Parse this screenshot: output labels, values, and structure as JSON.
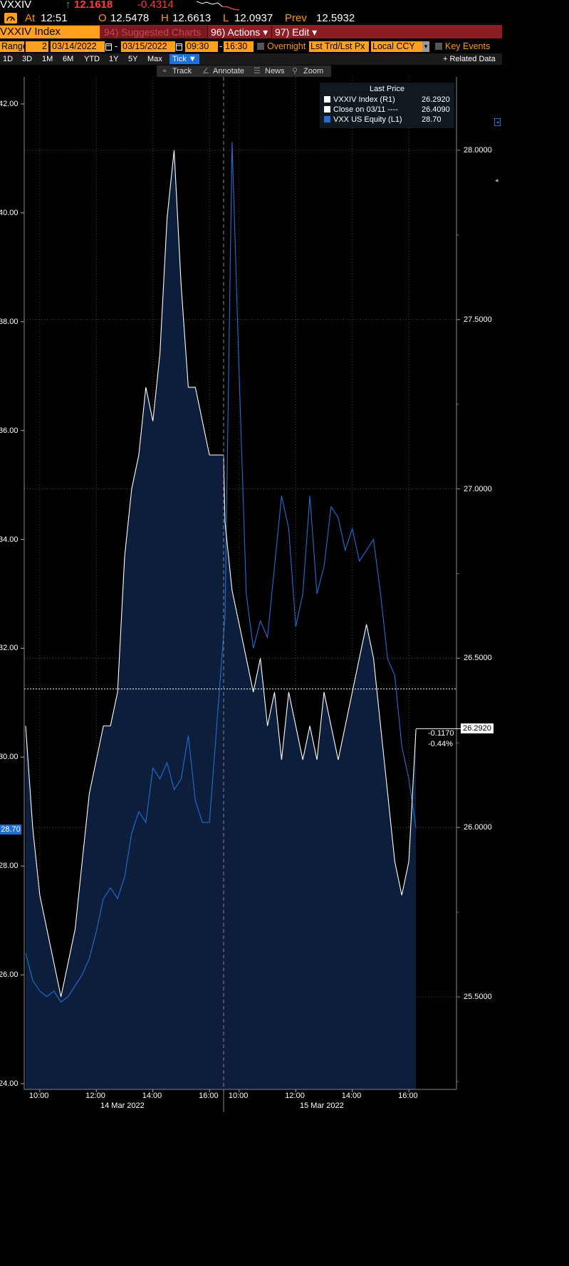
{
  "header": {
    "ticker": "VXXIV",
    "last_arrow": "↑",
    "last": "12.1618",
    "change": "-0.4314",
    "at_label": "At",
    "time": "12:51",
    "open_label": "O",
    "open": "12.5478",
    "high_label": "H",
    "high": "12.6613",
    "low_label": "L",
    "low": "12.0937",
    "prev_label": "Prev",
    "prev": "12.5932"
  },
  "toolbar": {
    "security": "VXXIV Index",
    "suggested": "94) Suggested Charts",
    "actions": "96) Actions ▾",
    "edit": "97) Edit ▾"
  },
  "range_bar": {
    "range_label": "Range",
    "range_num": "2",
    "start_date": "03/14/2022",
    "dash": "-",
    "end_date": "03/15/2022",
    "start_time": "09:30",
    "end_time": "16:30",
    "overnight": "Overnight",
    "lst_trd": "Lst Trd/Lst Px",
    "ccy": "Local CCY",
    "key_events": "Key Events"
  },
  "period_bar": {
    "periods": [
      "1D",
      "3D",
      "1M",
      "6M",
      "YTD",
      "1Y",
      "5Y",
      "Max"
    ],
    "tick": "Tick ▼",
    "related": "+ Related Data"
  },
  "tools": {
    "track": "Track",
    "annotate": "Annotate",
    "news": "News",
    "zoom": "Zoom"
  },
  "legend": {
    "title": "Last Price",
    "rows": [
      {
        "label": "VXXIV Index  (R1)",
        "value": "26.2920",
        "color": "#ffffff"
      },
      {
        "label": "Close on 03/11 ----",
        "value": "26.4090",
        "color": "#ffffff"
      },
      {
        "label": "VXX US Equity  (L1)",
        "value": "28.70",
        "color": "#1f6fd6"
      }
    ]
  },
  "last_value_tags": {
    "left": "28.70",
    "right": "26.2920",
    "change": "-0.1170",
    "change_pct": "-0.44%"
  },
  "colors": {
    "vxx": "#1f6fd6",
    "vxxiv": "#ffffff",
    "area": "#0c1e3c",
    "accent": "#ff9900"
  },
  "chart_data": {
    "type": "line",
    "x_ticks": [
      "10:00",
      "12:00",
      "14:00",
      "16:00",
      "10:00",
      "12:00",
      "14:00",
      "16:00"
    ],
    "date_labels": [
      "14 Mar 2022",
      "15 Mar 2022"
    ],
    "left_axis": {
      "ticks": [
        "24.00",
        "26.00",
        "28.00",
        "30.00",
        "32.00",
        "34.00",
        "36.00",
        "38.00",
        "40.00",
        "42.00"
      ],
      "ylim": [
        24,
        42
      ]
    },
    "right_axis": {
      "ticks": [
        "25.5000",
        "26.0000",
        "26.5000",
        "27.0000",
        "27.5000",
        "28.0000"
      ],
      "ylim": [
        25.5,
        28
      ]
    },
    "reference_line": {
      "label": "Close on 03/11",
      "value": 26.409
    },
    "series": [
      {
        "name": "VXXIV Index",
        "axis": "right",
        "x": [
          "03/14 09:30",
          "03/14 09:45",
          "03/14 10:00",
          "03/14 10:15",
          "03/14 10:30",
          "03/14 10:45",
          "03/14 11:00",
          "03/14 11:15",
          "03/14 11:30",
          "03/14 11:45",
          "03/14 12:00",
          "03/14 12:15",
          "03/14 12:30",
          "03/14 12:45",
          "03/14 13:00",
          "03/14 13:15",
          "03/14 13:30",
          "03/14 13:45",
          "03/14 14:00",
          "03/14 14:15",
          "03/14 14:30",
          "03/14 14:45",
          "03/14 15:00",
          "03/14 15:15",
          "03/14 15:30",
          "03/14 15:45",
          "03/14 16:00",
          "03/14 16:30",
          "03/15 09:30",
          "03/15 09:45",
          "03/15 10:00",
          "03/15 10:15",
          "03/15 10:30",
          "03/15 10:45",
          "03/15 11:00",
          "03/15 11:15",
          "03/15 11:30",
          "03/15 11:45",
          "03/15 12:00",
          "03/15 12:15",
          "03/15 12:30",
          "03/15 12:45",
          "03/15 13:00",
          "03/15 13:15",
          "03/15 13:30",
          "03/15 13:45",
          "03/15 14:00",
          "03/15 14:15",
          "03/15 14:30",
          "03/15 14:45",
          "03/15 15:00",
          "03/15 15:15",
          "03/15 15:30",
          "03/15 15:45",
          "03/15 16:00",
          "03/15 16:15"
        ],
        "values": [
          26.3,
          26.0,
          25.8,
          25.7,
          25.6,
          25.5,
          25.6,
          25.7,
          25.9,
          26.1,
          26.2,
          26.3,
          26.3,
          26.4,
          26.8,
          27.0,
          27.1,
          27.3,
          27.2,
          27.4,
          27.8,
          28.0,
          27.6,
          27.3,
          27.3,
          27.2,
          27.1,
          27.1,
          26.9,
          26.7,
          26.6,
          26.5,
          26.4,
          26.5,
          26.3,
          26.4,
          26.2,
          26.4,
          26.3,
          26.2,
          26.3,
          26.2,
          26.4,
          26.3,
          26.2,
          26.3,
          26.4,
          26.5,
          26.6,
          26.5,
          26.3,
          26.1,
          25.9,
          25.8,
          25.9,
          26.29
        ]
      },
      {
        "name": "VXX US Equity",
        "axis": "left",
        "x": [
          "03/14 09:30",
          "03/14 09:45",
          "03/14 10:00",
          "03/14 10:15",
          "03/14 10:30",
          "03/14 10:45",
          "03/14 11:00",
          "03/14 11:15",
          "03/14 11:30",
          "03/14 11:45",
          "03/14 12:00",
          "03/14 12:15",
          "03/14 12:30",
          "03/14 12:45",
          "03/14 13:00",
          "03/14 13:15",
          "03/14 13:30",
          "03/14 13:45",
          "03/14 14:00",
          "03/14 14:15",
          "03/14 14:30",
          "03/14 14:45",
          "03/14 15:00",
          "03/14 15:15",
          "03/14 15:30",
          "03/14 15:45",
          "03/14 16:00",
          "03/15 09:30",
          "03/15 09:45",
          "03/15 10:00",
          "03/15 10:15",
          "03/15 10:30",
          "03/15 10:45",
          "03/15 11:00",
          "03/15 11:15",
          "03/15 11:30",
          "03/15 11:45",
          "03/15 12:00",
          "03/15 12:15",
          "03/15 12:30",
          "03/15 12:45",
          "03/15 13:00",
          "03/15 13:15",
          "03/15 13:30",
          "03/15 13:45",
          "03/15 14:00",
          "03/15 14:15",
          "03/15 14:30",
          "03/15 14:45",
          "03/15 15:00",
          "03/15 15:15",
          "03/15 15:30",
          "03/15 15:45",
          "03/15 16:00",
          "03/15 16:15"
        ],
        "values": [
          26.4,
          25.9,
          25.7,
          25.6,
          25.7,
          25.5,
          25.6,
          25.8,
          26.0,
          26.3,
          26.8,
          27.4,
          27.6,
          27.4,
          27.8,
          28.6,
          29.0,
          28.8,
          29.8,
          29.6,
          29.9,
          29.4,
          29.6,
          30.4,
          29.2,
          28.8,
          28.8,
          32.6,
          41.3,
          37.0,
          33.0,
          32.0,
          32.5,
          32.2,
          33.5,
          34.8,
          34.2,
          32.4,
          33.0,
          34.8,
          33.0,
          33.5,
          34.6,
          34.4,
          33.8,
          34.2,
          33.6,
          33.8,
          34.0,
          33.0,
          31.8,
          31.5,
          30.2,
          29.6,
          28.7
        ]
      }
    ]
  }
}
